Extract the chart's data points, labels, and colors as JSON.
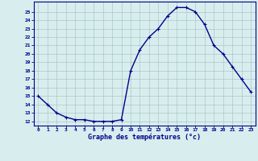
{
  "hours": [
    0,
    1,
    2,
    3,
    4,
    5,
    6,
    7,
    8,
    9,
    10,
    11,
    12,
    13,
    14,
    15,
    16,
    17,
    18,
    19,
    20,
    21,
    22,
    23
  ],
  "temps": [
    15,
    14,
    13,
    12.5,
    12.2,
    12.2,
    12.0,
    12.0,
    12.0,
    12.2,
    18.0,
    20.5,
    22.0,
    23.0,
    24.5,
    25.5,
    25.5,
    25.0,
    23.5,
    21.0,
    20.0,
    18.5,
    17.0,
    15.5
  ],
  "line_color": "#00008b",
  "marker": "+",
  "marker_size": 3,
  "bg_color": "#d8eeee",
  "grid_color": "#a8c8c8",
  "axis_label_color": "#00008b",
  "tick_color": "#00008b",
  "xlabel": "Graphe des températures (°c)",
  "ylabel_ticks": [
    12,
    13,
    14,
    15,
    16,
    17,
    18,
    19,
    20,
    21,
    22,
    23,
    24,
    25
  ],
  "ylim": [
    11.5,
    26.2
  ],
  "xlim": [
    -0.5,
    23.5
  ],
  "linewidth": 1.0
}
